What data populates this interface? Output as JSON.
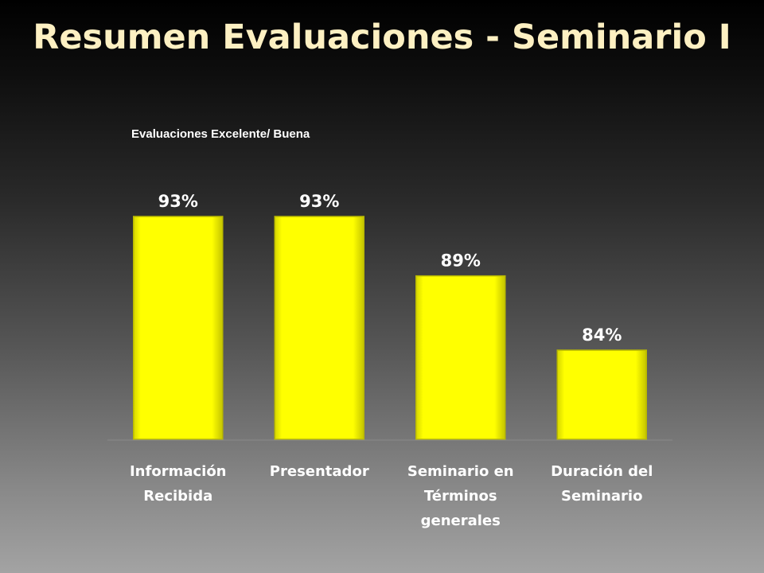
{
  "slide": {
    "title": "Resumen Evaluaciones - Seminario I"
  },
  "chart_data": {
    "type": "bar",
    "title": "",
    "subtitle": "Evaluaciones  Excelente/ Buena",
    "categories": [
      [
        "Información",
        "Recibida"
      ],
      [
        "Presentador"
      ],
      [
        "Seminario en",
        "Términos",
        "generales"
      ],
      [
        "Duración del",
        "Seminario"
      ]
    ],
    "values": [
      93,
      93,
      89,
      84
    ],
    "data_labels": [
      "93%",
      "93%",
      "89%",
      "84%"
    ],
    "unit": "%",
    "ylim": [
      75,
      100
    ],
    "grid": false,
    "legend": "none",
    "colors": {
      "bar": "#ffff00",
      "bar_edge": "#b8b800",
      "labels": "#ffffff",
      "title": "#fdf0c2",
      "baseline": "#8a8a8a"
    }
  }
}
